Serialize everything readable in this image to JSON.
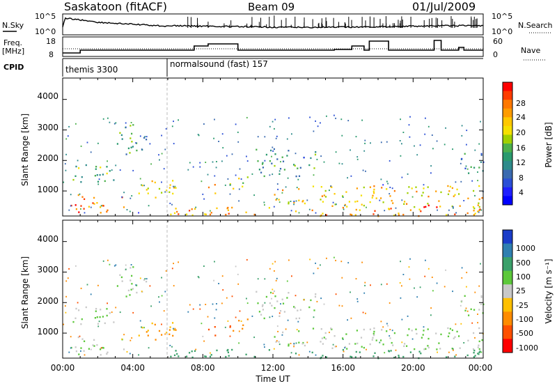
{
  "header": {
    "station": "Saskatoon (fitACF)",
    "beam": "Beam 09",
    "date": "01/Jul/2009"
  },
  "noise_panel": {
    "left_label": "N.Sky",
    "left_ticks": [
      "10^5",
      "10^0"
    ],
    "right_label": "N.Search",
    "right_ticks": [
      "10^5",
      "10^0"
    ]
  },
  "freq_panel": {
    "left_label_line1": "Freq.",
    "left_label_line2": "[MHz]",
    "left_ticks": [
      "18",
      "8"
    ],
    "right_label": "Nave",
    "right_ticks": [
      "60",
      "0"
    ]
  },
  "cpid_panel": {
    "label": "CPID",
    "modes": [
      {
        "name": "themis 3300",
        "start_hour": 0
      },
      {
        "name": "normalsound (fast) 157",
        "start_hour": 6
      }
    ]
  },
  "power_panel": {
    "ylabel": "Slant Range [km]",
    "yticks": [
      "1000",
      "2000",
      "3000",
      "4000"
    ],
    "colorbar_label": "Power [dB]",
    "colorbar_ticks": [
      "28",
      "24",
      "20",
      "16",
      "12",
      "8",
      "4"
    ],
    "colorbar_colors": [
      "#ff0000",
      "#ff3c00",
      "#ff7800",
      "#ff9c00",
      "#ffc800",
      "#f5e000",
      "#a0d000",
      "#4cb04c",
      "#2a9a6e",
      "#2e8b8b",
      "#3a6ab0",
      "#2b4fd6",
      "#1f1fff",
      "#0000ff"
    ]
  },
  "velocity_panel": {
    "ylabel": "Slant Range [km]",
    "yticks": [
      "1000",
      "2000",
      "3000",
      "4000"
    ],
    "colorbar_label": "Velocity [m s⁻¹]",
    "colorbar_ticks": [
      "1000",
      "500",
      "100",
      "25",
      "-25",
      "-100",
      "-500",
      "-1000"
    ],
    "colorbar_colors": [
      "#1a3cc8",
      "#2f7fb0",
      "#3aa06a",
      "#5cc83a",
      "#c8c8c8",
      "#ffc000",
      "#ff8c00",
      "#ff5000",
      "#ff0000"
    ]
  },
  "xaxis": {
    "label": "Time UT",
    "ticks": [
      "00:00",
      "04:00",
      "08:00",
      "12:00",
      "16:00",
      "20:00",
      "00:00"
    ]
  },
  "chart_data": {
    "type": "heatmap",
    "x_range_hours": [
      0,
      24
    ],
    "y_range_km": [
      180,
      4700
    ],
    "series": [
      {
        "name": "Power",
        "unit": "dB",
        "range": [
          0,
          30
        ]
      },
      {
        "name": "Velocity",
        "unit": "m s^-1",
        "range": [
          -1000,
          1000
        ]
      }
    ],
    "scatter_regions": [
      {
        "hours": [
          0.3,
          3.6
        ],
        "km": [
          300,
          900
        ],
        "power_db": 24,
        "velocity": 25
      },
      {
        "hours": [
          0.5,
          3.5
        ],
        "km": [
          1300,
          1900
        ],
        "power_db": 14,
        "velocity": 25
      },
      {
        "hours": [
          3.0,
          4.8
        ],
        "km": [
          2200,
          3200
        ],
        "power_db": 12,
        "velocity": 25
      },
      {
        "hours": [
          4.2,
          6.5
        ],
        "km": [
          700,
          1400
        ],
        "power_db": 20,
        "velocity": -100
      },
      {
        "hours": [
          8.3,
          8.9
        ],
        "km": [
          900,
          1400
        ],
        "power_db": 24,
        "velocity": -500
      },
      {
        "hours": [
          9.5,
          10.7
        ],
        "km": [
          1100,
          1600
        ],
        "power_db": 16,
        "velocity": -500
      },
      {
        "hours": [
          11.0,
          14.5
        ],
        "km": [
          1500,
          2400
        ],
        "power_db": 12,
        "velocity": 25
      },
      {
        "hours": [
          12.0,
          24.0
        ],
        "km": [
          500,
          1200
        ],
        "power_db": 20,
        "velocity": 25
      },
      {
        "hours": [
          20.5,
          21.5
        ],
        "km": [
          200,
          600
        ],
        "power_db": 28,
        "velocity": 25
      },
      {
        "hours": [
          22.5,
          24.0
        ],
        "km": [
          1600,
          2400
        ],
        "power_db": 10,
        "velocity": 25
      },
      {
        "hours": [
          6.0,
          24.0
        ],
        "km": [
          200,
          500
        ],
        "power_db": 22,
        "velocity": 100
      }
    ]
  }
}
